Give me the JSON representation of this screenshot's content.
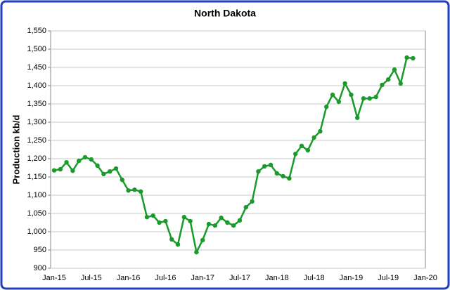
{
  "chart_data": {
    "type": "line",
    "title": "North Dakota",
    "y_label": "Production kb/d",
    "categories": [
      "Jan-15",
      null,
      null,
      null,
      null,
      null,
      "Jul-15",
      null,
      null,
      null,
      null,
      null,
      "Jan-16",
      null,
      null,
      null,
      null,
      null,
      "Jul-16",
      null,
      null,
      null,
      null,
      null,
      "Jan-17",
      null,
      null,
      null,
      null,
      null,
      "Jul-17",
      null,
      null,
      null,
      null,
      null,
      "Jan-18",
      null,
      null,
      null,
      null,
      null,
      "Jul-18",
      null,
      null,
      null,
      null,
      null,
      "Jan-19",
      null,
      null,
      null,
      null,
      null,
      "Jul-19",
      null,
      null,
      null,
      null,
      null,
      "Jan-20"
    ],
    "series": [
      {
        "color": "#1a9a2a",
        "values": [
          1168,
          1171,
          1190,
          1167,
          1194,
          1204,
          1198,
          1181,
          1158,
          1165,
          1173,
          1142,
          1113,
          1115,
          1110,
          1040,
          1044,
          1025,
          1029,
          979,
          965,
          1040,
          1029,
          944,
          977,
          1021,
          1017,
          1038,
          1025,
          1017,
          1031,
          1067,
          1083,
          1165,
          1179,
          1183,
          1160,
          1152,
          1146,
          1213,
          1235,
          1223,
          1258,
          1275,
          1342,
          1375,
          1356,
          1406,
          1375,
          1312,
          1365,
          1365,
          1369,
          1402,
          1417,
          1444,
          1406,
          1477,
          1475,
          null,
          null
        ]
      }
    ],
    "ylim": [
      900,
      1550
    ],
    "yticks": [
      900,
      950,
      {
        "value": 1000,
        "label": "1,000"
      },
      {
        "value": 1050,
        "label": "1,050"
      },
      {
        "value": 1100,
        "label": "1,100"
      },
      {
        "value": 1150,
        "label": "1,150"
      },
      {
        "value": 1200,
        "label": "1,200"
      },
      {
        "value": 1250,
        "label": "1,250"
      },
      {
        "value": 1300,
        "label": "1,300"
      },
      {
        "value": 1350,
        "label": "1,350"
      },
      {
        "value": 1400,
        "label": "1,400"
      },
      {
        "value": 1450,
        "label": "1,450"
      },
      {
        "value": 1500,
        "label": "1,500"
      },
      {
        "value": 1550,
        "label": "1,550"
      }
    ],
    "grid": true
  }
}
